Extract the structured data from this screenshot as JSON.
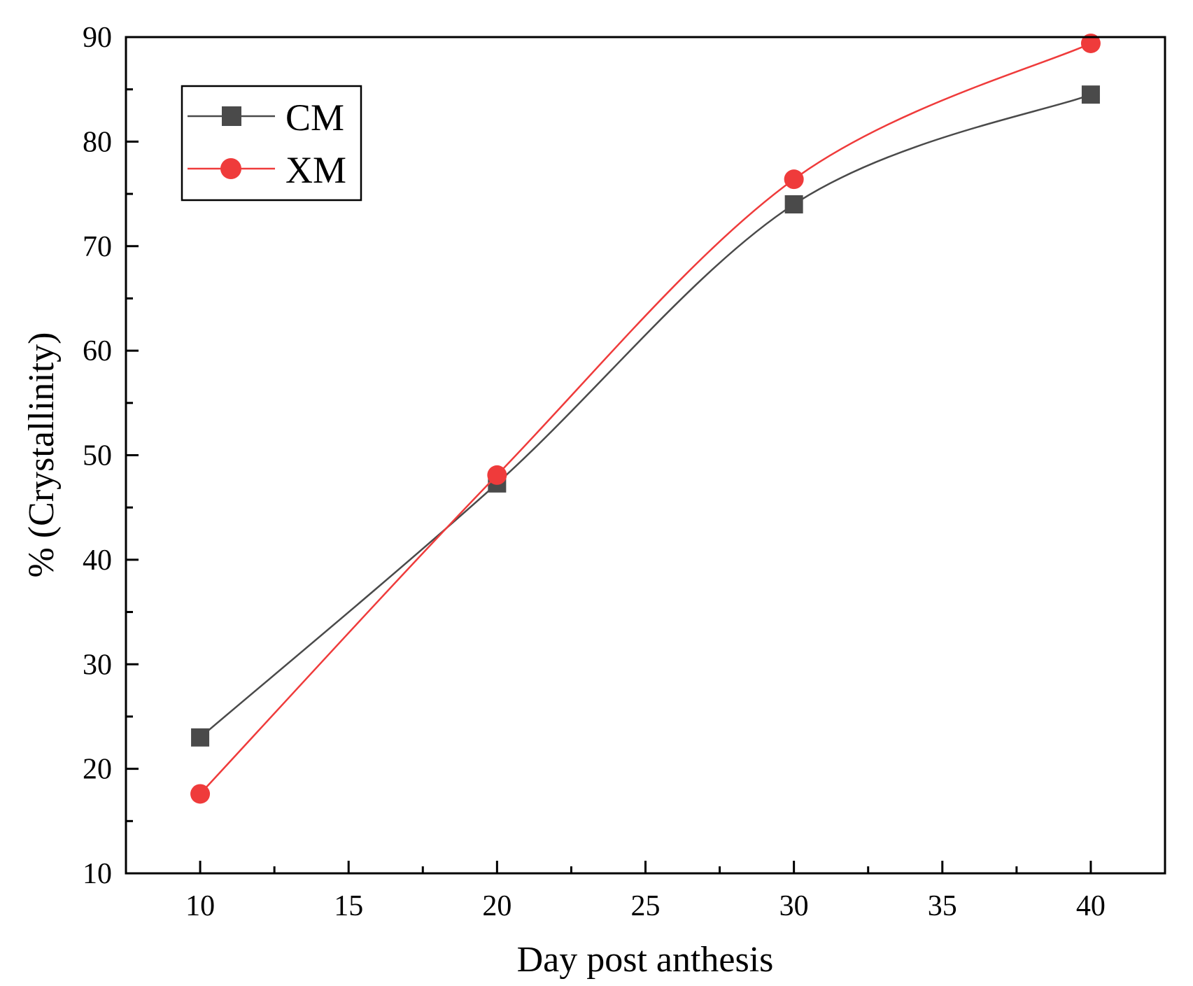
{
  "chart_data": {
    "type": "line",
    "title": "",
    "xlabel": "Day post anthesis",
    "ylabel": "% (Crystallinity)",
    "xlim": [
      7.5,
      42.5
    ],
    "ylim": [
      10,
      90
    ],
    "xticks": [
      10,
      15,
      20,
      25,
      30,
      35,
      40
    ],
    "yticks": [
      10,
      20,
      30,
      40,
      50,
      60,
      70,
      80,
      90
    ],
    "legend": "top-left",
    "grid": false,
    "series": [
      {
        "name": "CM",
        "marker": "square",
        "color": "#4a4a4a",
        "x": [
          10,
          20,
          30,
          40
        ],
        "values": [
          23.0,
          47.3,
          74.0,
          84.5
        ]
      },
      {
        "name": "XM",
        "marker": "circle",
        "color": "#ef3b3b",
        "x": [
          10,
          20,
          30,
          40
        ],
        "values": [
          17.6,
          48.1,
          76.4,
          89.4
        ]
      }
    ]
  }
}
